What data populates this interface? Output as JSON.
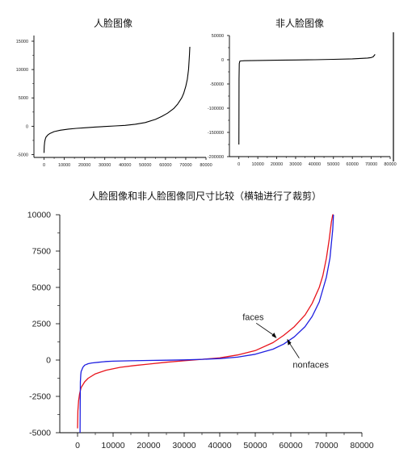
{
  "chart_data": [
    {
      "type": "line",
      "title": "人脸图像",
      "xlim": [
        -5000,
        80000
      ],
      "ylim": [
        -5500,
        16000
      ],
      "x_ticks": [
        0,
        10000,
        20000,
        30000,
        40000,
        50000,
        60000,
        70000,
        80000
      ],
      "x_tick_labels": [
        "0",
        "10000",
        "20000",
        "30000",
        "40000",
        "50000",
        "60000",
        "70000",
        "80000"
      ],
      "y_ticks": [
        -5000,
        0,
        5000,
        10000,
        15000
      ],
      "y_tick_labels": [
        "-5000",
        "0",
        "5000",
        "10000",
        "15000"
      ],
      "series": [
        {
          "color": "#000000",
          "x": [
            0,
            100,
            300,
            600,
            1000,
            2000,
            3000,
            5000,
            8000,
            12000,
            16000,
            20000,
            25000,
            30000,
            35000,
            40000,
            45000,
            50000,
            55000,
            58000,
            61000,
            64000,
            66000,
            68000,
            69000,
            70000,
            70800,
            71400,
            71800,
            72000
          ],
          "y": [
            -4700,
            -3500,
            -2800,
            -2300,
            -1900,
            -1500,
            -1250,
            -950,
            -700,
            -500,
            -380,
            -280,
            -150,
            -50,
            50,
            150,
            350,
            650,
            1200,
            1700,
            2300,
            3100,
            3900,
            5000,
            5800,
            7000,
            8300,
            10000,
            12500,
            14000
          ]
        }
      ]
    },
    {
      "type": "line",
      "title": "非人脸图像",
      "xlim": [
        -5000,
        80000
      ],
      "ylim": [
        -200000,
        50000
      ],
      "x_ticks": [
        0,
        10000,
        20000,
        30000,
        40000,
        50000,
        60000,
        70000,
        80000
      ],
      "x_tick_labels": [
        "0",
        "10000",
        "20000",
        "30000",
        "40000",
        "50000",
        "60000",
        "70000",
        "80000"
      ],
      "y_ticks": [
        -200000,
        -150000,
        -100000,
        -50000,
        0,
        50000
      ],
      "y_tick_labels": [
        "-200000",
        "-150000",
        "-100000",
        "-50000",
        "0",
        "50000"
      ],
      "series": [
        {
          "color": "#000000",
          "x": [
            0,
            50,
            100,
            200,
            500,
            1000,
            3000,
            10000,
            20000,
            30000,
            40000,
            50000,
            60000,
            65000,
            68000,
            70000,
            71000,
            71500,
            72000
          ],
          "y": [
            -175000,
            -120000,
            -40000,
            -8000,
            -3000,
            -2500,
            -2000,
            -1500,
            -1000,
            -500,
            0,
            800,
            1800,
            2800,
            3500,
            4500,
            6000,
            8500,
            11000
          ]
        }
      ]
    },
    {
      "type": "line",
      "title": "人脸图像和非人脸图像同尺寸比较（横轴进行了裁剪）",
      "xlim": [
        -5000,
        80000
      ],
      "ylim": [
        -5000,
        10000
      ],
      "x_ticks": [
        0,
        10000,
        20000,
        30000,
        40000,
        50000,
        60000,
        70000,
        80000
      ],
      "x_tick_labels": [
        "0",
        "10000",
        "20000",
        "30000",
        "40000",
        "50000",
        "60000",
        "70000",
        "80000"
      ],
      "y_ticks": [
        -5000,
        -2500,
        0,
        2500,
        5000,
        7500,
        10000
      ],
      "y_tick_labels": [
        "-5000",
        "-2500",
        "0",
        "2500",
        "5000",
        "7500",
        "10000"
      ],
      "annotations": [
        "faces",
        "nonfaces"
      ],
      "series": [
        {
          "name": "faces",
          "color": "#e8141c",
          "x": [
            0,
            100,
            300,
            600,
            1000,
            2000,
            3000,
            5000,
            8000,
            12000,
            16000,
            20000,
            25000,
            30000,
            35000,
            40000,
            45000,
            50000,
            55000,
            58000,
            61000,
            64000,
            66000,
            68000,
            69000,
            70000,
            70800,
            71400,
            71800,
            72000
          ],
          "y": [
            -4700,
            -3500,
            -2800,
            -2300,
            -1900,
            -1500,
            -1250,
            -950,
            -700,
            -500,
            -380,
            -280,
            -150,
            -50,
            50,
            150,
            350,
            650,
            1200,
            1700,
            2300,
            3100,
            3900,
            5000,
            5800,
            7000,
            8300,
            9500,
            10000,
            10000
          ]
        },
        {
          "name": "nonfaces",
          "color": "#1f1fe0",
          "x": [
            700,
            750,
            800,
            900,
            1000,
            1500,
            2000,
            3000,
            4000,
            6000,
            8000,
            10000,
            15000,
            20000,
            25000,
            30000,
            35000,
            40000,
            45000,
            50000,
            55000,
            58000,
            61000,
            64000,
            66000,
            68000,
            70000,
            71000,
            71800,
            72000
          ],
          "y": [
            -5000,
            -3000,
            -1500,
            -1000,
            -800,
            -500,
            -350,
            -250,
            -200,
            -150,
            -100,
            -80,
            -50,
            -30,
            -10,
            10,
            50,
            100,
            200,
            400,
            750,
            1100,
            1600,
            2300,
            3000,
            4000,
            5700,
            7000,
            9000,
            10000
          ]
        }
      ]
    }
  ]
}
